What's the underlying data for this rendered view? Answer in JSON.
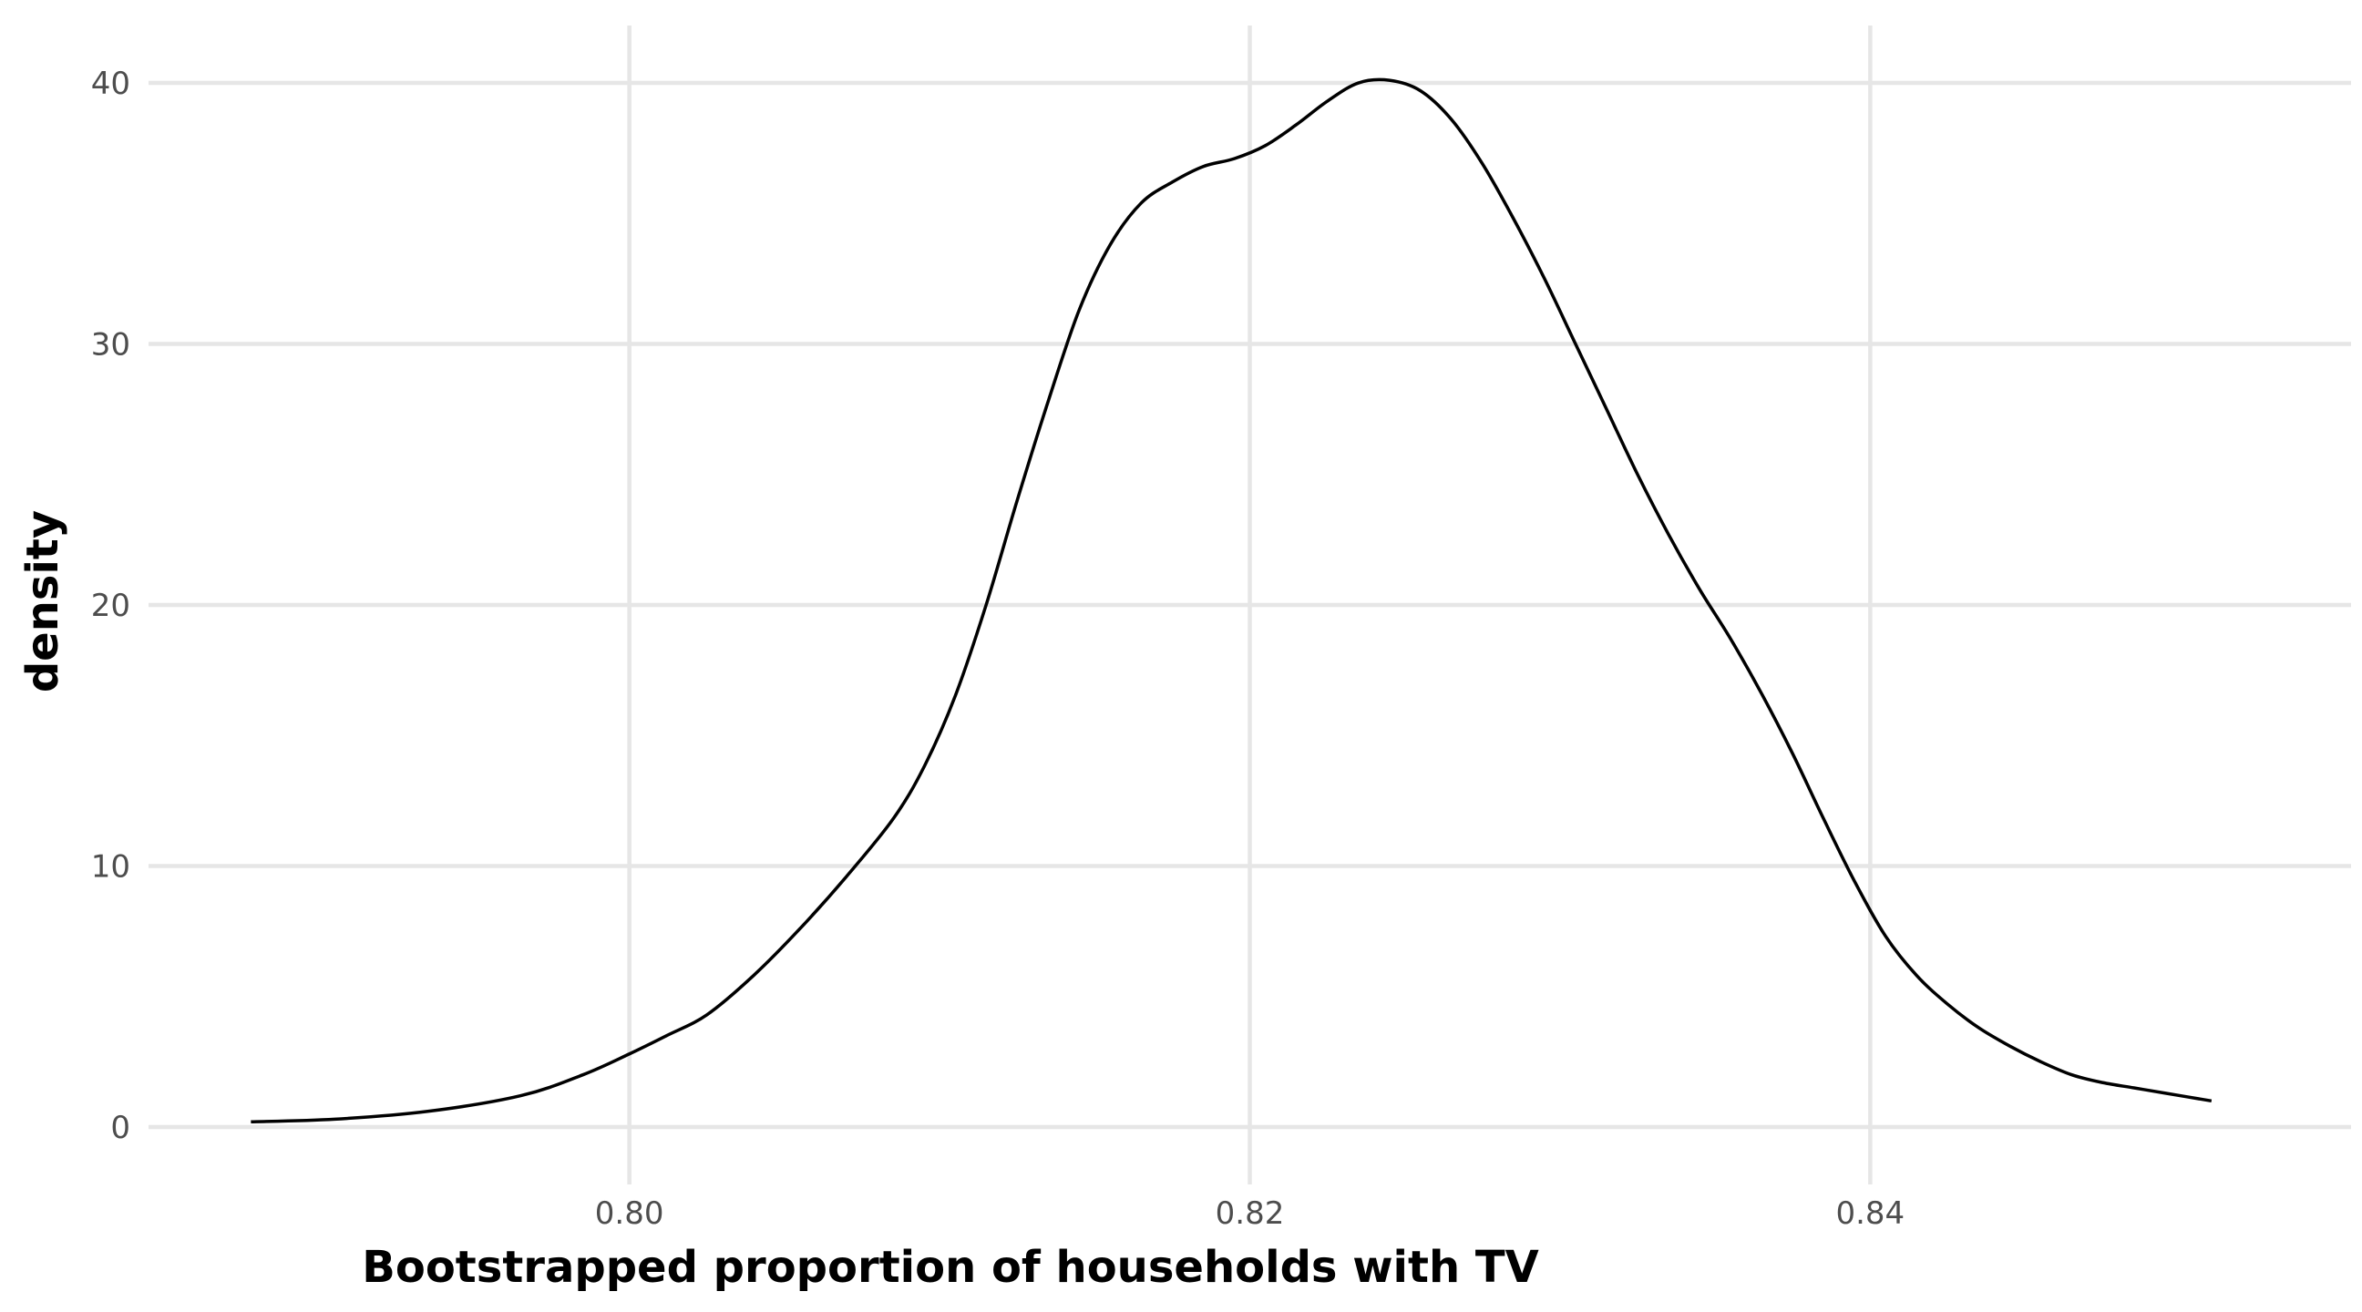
{
  "chart_data": {
    "type": "line",
    "title": "",
    "xlabel": "Bootstrapped proportion of households with TV",
    "ylabel": "density",
    "xlim": [
      0.7845,
      0.8555
    ],
    "ylim": [
      -2.2,
      42.2
    ],
    "x_ticks": [
      {
        "value": 0.8,
        "label": "0.80"
      },
      {
        "value": 0.82,
        "label": "0.82"
      },
      {
        "value": 0.84,
        "label": "0.84"
      }
    ],
    "y_ticks": [
      {
        "value": 0,
        "label": "0"
      },
      {
        "value": 10,
        "label": "10"
      },
      {
        "value": 20,
        "label": "20"
      },
      {
        "value": 30,
        "label": "30"
      },
      {
        "value": 40,
        "label": "40"
      }
    ],
    "grid": true,
    "legend": "none",
    "series": [
      {
        "color": "#000000",
        "x": [
          0.7878,
          0.7905,
          0.7935,
          0.7965,
          0.7985,
          0.8,
          0.8012,
          0.8025,
          0.804,
          0.8055,
          0.807,
          0.8085,
          0.8095,
          0.8105,
          0.8115,
          0.8125,
          0.8135,
          0.8145,
          0.8155,
          0.8165,
          0.8175,
          0.8185,
          0.8195,
          0.8205,
          0.8215,
          0.8225,
          0.8235,
          0.8245,
          0.8255,
          0.8265,
          0.8275,
          0.8285,
          0.8295,
          0.8305,
          0.8315,
          0.8325,
          0.8335,
          0.8345,
          0.8355,
          0.8365,
          0.8375,
          0.8385,
          0.8395,
          0.8405,
          0.8415,
          0.8425,
          0.8435,
          0.8445,
          0.8455,
          0.8465,
          0.8475,
          0.8485,
          0.8495,
          0.851
        ],
        "y": [
          0.2,
          0.3,
          0.6,
          1.2,
          2.0,
          2.8,
          3.5,
          4.3,
          5.8,
          7.6,
          9.6,
          11.8,
          13.8,
          16.5,
          20.0,
          24.0,
          27.8,
          31.3,
          33.8,
          35.4,
          36.2,
          36.8,
          37.1,
          37.6,
          38.4,
          39.3,
          40.0,
          40.1,
          39.7,
          38.6,
          36.9,
          34.8,
          32.5,
          30.0,
          27.5,
          25.0,
          22.7,
          20.6,
          18.7,
          16.6,
          14.3,
          11.8,
          9.4,
          7.3,
          5.8,
          4.7,
          3.8,
          3.1,
          2.5,
          2.0,
          1.7,
          1.5,
          1.3,
          1.0
        ]
      }
    ]
  }
}
